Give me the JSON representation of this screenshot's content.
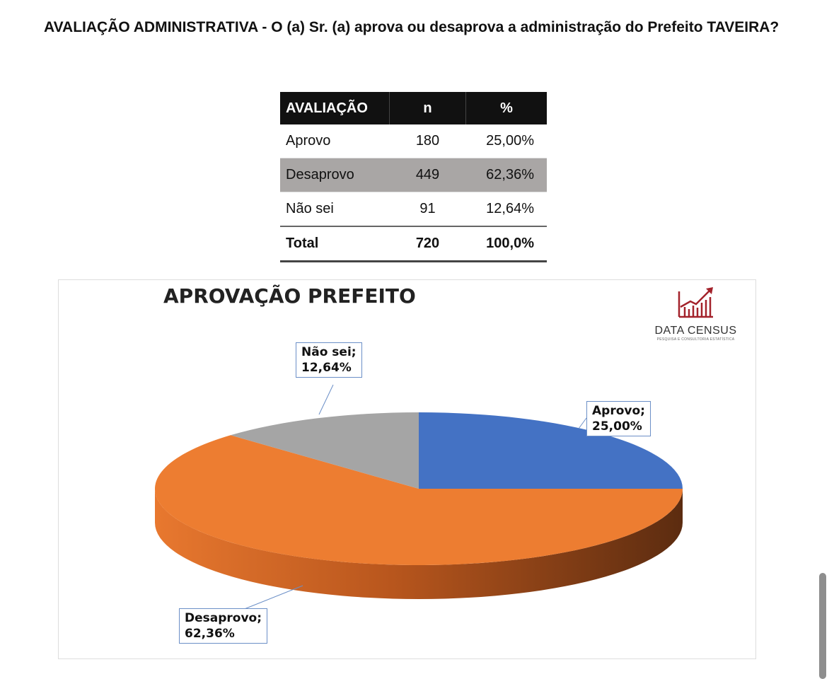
{
  "question": "AVALIAÇÃO ADMINISTRATIVA - O (a) Sr. (a) aprova ou desaprova a administração do Prefeito TAVEIRA?",
  "table": {
    "headers": [
      "AVALIAÇÃO",
      "n",
      "%"
    ],
    "rows": [
      [
        "Aprovo",
        "180",
        "25,00%"
      ],
      [
        "Desaprovo",
        "449",
        "62,36%"
      ],
      [
        "Não sei",
        "91",
        "12,64%"
      ]
    ],
    "total": [
      "Total",
      "720",
      "100,0%"
    ]
  },
  "logo": {
    "name": "DATA CENSUS",
    "tagline": "PESQUISA E CONSULTORIA ESTATÍSTICA"
  },
  "chart_data": {
    "type": "pie",
    "title": "APROVAÇÃO PREFEITO",
    "categories": [
      "Aprovo",
      "Desaprovo",
      "Não sei"
    ],
    "values": [
      25.0,
      62.36,
      12.64
    ],
    "labels": [
      {
        "name": "Aprovo;",
        "value": "25,00%"
      },
      {
        "name": "Desaprovo;",
        "value": "62,36%"
      },
      {
        "name": "Não sei;",
        "value": "12,64%"
      }
    ],
    "colors": [
      "#4472c4",
      "#ed7d31",
      "#a5a5a5"
    ]
  }
}
